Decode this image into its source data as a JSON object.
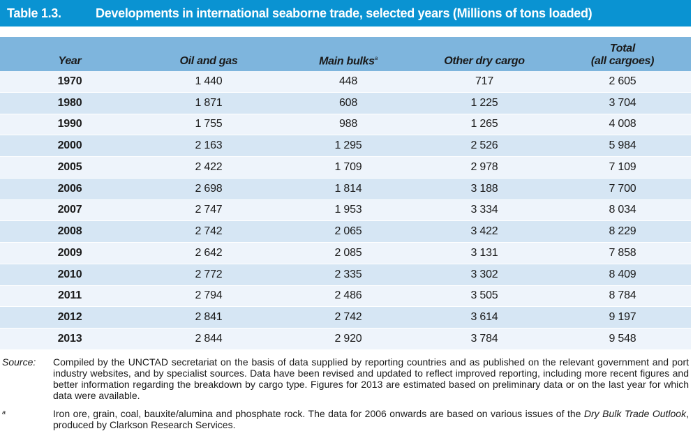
{
  "table": {
    "number": "Table 1.3.",
    "title": "Developments in international seaborne trade, selected years (Millions of tons loaded)",
    "columns": {
      "year": "Year",
      "oil": "Oil and gas",
      "bulk": "Main bulks",
      "bulk_sup": "a",
      "other": "Other dry cargo",
      "total_line1": "Total",
      "total_line2": "(all cargoes)"
    },
    "rows": [
      {
        "year": "1970",
        "oil": "1 440",
        "bulk": "448",
        "other": "717",
        "total": "2 605"
      },
      {
        "year": "1980",
        "oil": "1 871",
        "bulk": "608",
        "other": "1 225",
        "total": "3 704"
      },
      {
        "year": "1990",
        "oil": "1 755",
        "bulk": "988",
        "other": "1 265",
        "total": "4 008"
      },
      {
        "year": "2000",
        "oil": "2 163",
        "bulk": "1 295",
        "other": "2 526",
        "total": "5 984"
      },
      {
        "year": "2005",
        "oil": "2 422",
        "bulk": "1 709",
        "other": "2 978",
        "total": "7 109"
      },
      {
        "year": "2006",
        "oil": "2 698",
        "bulk": "1 814",
        "other": "3 188",
        "total": "7 700"
      },
      {
        "year": "2007",
        "oil": "2 747",
        "bulk": "1 953",
        "other": "3 334",
        "total": "8 034"
      },
      {
        "year": "2008",
        "oil": "2 742",
        "bulk": "2 065",
        "other": "3 422",
        "total": "8 229"
      },
      {
        "year": "2009",
        "oil": "2 642",
        "bulk": "2 085",
        "other": "3 131",
        "total": "7 858"
      },
      {
        "year": "2010",
        "oil": "2 772",
        "bulk": "2 335",
        "other": "3 302",
        "total": "8 409"
      },
      {
        "year": "2011",
        "oil": "2 794",
        "bulk": "2 486",
        "other": "3 505",
        "total": "8 784"
      },
      {
        "year": "2012",
        "oil": "2 841",
        "bulk": "2 742",
        "other": "3 614",
        "total": "9 197"
      },
      {
        "year": "2013",
        "oil": "2 844",
        "bulk": "2 920",
        "other": "3 784",
        "total": "9 548"
      }
    ]
  },
  "notes": {
    "source_label": "Source:",
    "source_text": "Compiled by the UNCTAD secretariat on the basis of data supplied by reporting countries and as published on the relevant government and port industry websites, and by specialist sources. Data have been revised and updated to reflect improved reporting, including more recent figures and better information regarding the breakdown by cargo type. Figures for 2013 are estimated based on preliminary data or on the last year for which data were available.",
    "footnote_label": "a",
    "footnote_text_1": "Iron ore, grain, coal, bauxite/alumina and phosphate rock. The data for 2006 onwards are based on various issues of the ",
    "footnote_publication": "Dry Bulk Trade Outlook",
    "footnote_text_2": ", produced by Clarkson Research Services."
  },
  "colors": {
    "title_bar": "#0a93d2",
    "header_row": "#7eb5dd",
    "row_light": "#eef4fb",
    "row_dark": "#d6e6f4"
  }
}
